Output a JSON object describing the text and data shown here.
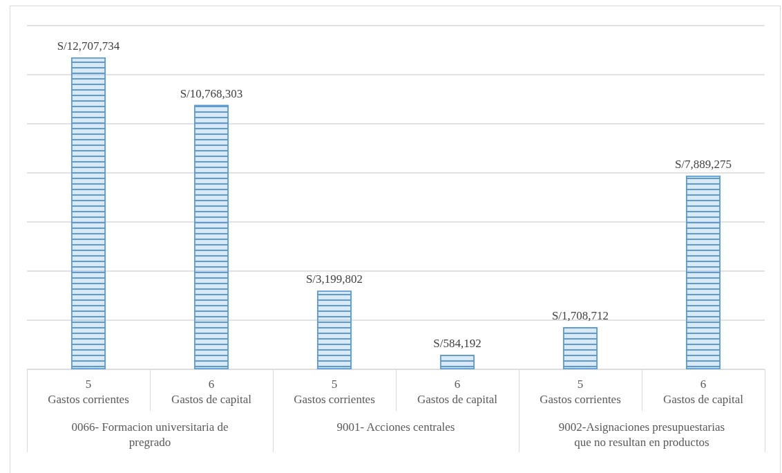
{
  "chart_data": {
    "type": "bar",
    "categories": [
      "5\nGastos corrientes",
      "6\nGastos de capital",
      "5\nGastos corrientes",
      "6\nGastos de capital",
      "5\nGastos corrientes",
      "6\nGastos de capital"
    ],
    "values": [
      12707734,
      10768303,
      3199802,
      584192,
      1708712,
      7889275
    ],
    "value_labels": [
      "S/12,707,734",
      "S/10,768,303",
      "S/3,199,802",
      "S/584,192",
      "S/1,708,712",
      "S/7,889,275"
    ],
    "color": "#5b9bd5",
    "ylim": [
      0,
      14000000
    ],
    "yticks": [
      {
        "value": 0,
        "label": null
      },
      {
        "value": 2000000,
        "label": null
      },
      {
        "value": 4000000,
        "label": null
      },
      {
        "value": 6000000,
        "label": null
      },
      {
        "value": 8000000,
        "label": null
      },
      {
        "value": 10000000,
        "label": null
      },
      {
        "value": 12000000,
        "label": null
      },
      {
        "value": 14000000,
        "label": null
      }
    ],
    "tick_labels": "x",
    "grid": "y",
    "annotations": [
      "0066- Formacion universitaria de\npregrado",
      "9001- Acciones centrales",
      "9002-Asignaciones presupuestarias\nque no resultan en productos"
    ]
  }
}
